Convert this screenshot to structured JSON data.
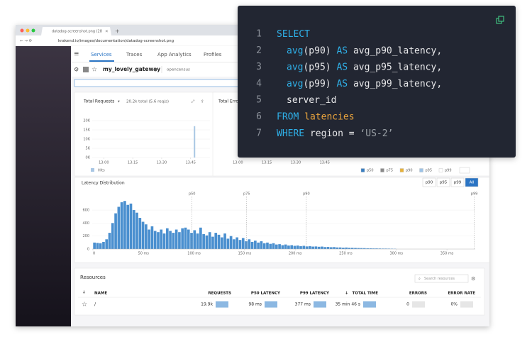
{
  "browser": {
    "tab_title": "datadog-screenshot.png (28",
    "url": "krakend.io/images/documentation/datadog-screenshot.png"
  },
  "nav": [
    "Services",
    "Traces",
    "App Analytics",
    "Profiles"
  ],
  "service": {
    "name": "my_lovely_gateway",
    "tag": "opencensus"
  },
  "requests_chart": {
    "type": "bar",
    "title": "Total Requests",
    "summary": "20.2k total (5.6 req/s)",
    "x": [
      47
    ],
    "values": [
      17000
    ],
    "color": "#a9c7e4",
    "xlim": [
      -6,
      55
    ],
    "xticks": [
      {
        "value": 0,
        "label": "13:00"
      },
      {
        "value": 15,
        "label": "13:15"
      },
      {
        "value": 30,
        "label": "13:30"
      },
      {
        "value": 45,
        "label": "13:45"
      }
    ],
    "ylim": [
      0,
      20000
    ],
    "yticks": [
      {
        "value": 0,
        "label": "0K"
      },
      {
        "value": 5000,
        "label": "5K"
      },
      {
        "value": 10000,
        "label": "10K"
      },
      {
        "value": 15000,
        "label": "15K"
      },
      {
        "value": 20000,
        "label": "20K"
      }
    ],
    "legend": "Hits"
  },
  "errors_chart": {
    "title": "Total Erro",
    "xlim": [
      -6,
      55
    ],
    "xticks": [
      {
        "value": 0,
        "label": "13:00"
      },
      {
        "value": 15,
        "label": "13:15"
      },
      {
        "value": 30,
        "label": "13:30"
      },
      {
        "value": 45,
        "label": "13:45"
      }
    ],
    "legend": [
      {
        "name": "p50",
        "color": "#3a7fc1"
      },
      {
        "name": "p75",
        "color": "#8a8a8a"
      },
      {
        "name": "p90",
        "color": "#e8b23a"
      },
      {
        "name": "p95",
        "color": "#9dc3e6"
      },
      {
        "name": "p99",
        "color": "#ffffff"
      }
    ]
  },
  "latency_chart": {
    "type": "histogram",
    "title": "Latency Distribution",
    "buttons": [
      "p90",
      "p95",
      "p99",
      "All"
    ],
    "active_button": 3,
    "markers": [
      {
        "label": "p50",
        "value": 98
      },
      {
        "label": "p75",
        "value": 152
      },
      {
        "label": "p90",
        "value": 211
      },
      {
        "label": "p99",
        "value": 377
      }
    ],
    "bins": [
      0,
      3,
      6,
      9,
      12,
      15,
      18,
      21,
      24,
      27,
      30,
      33,
      36,
      39,
      42,
      45,
      48,
      51,
      54,
      57,
      60,
      63,
      66,
      69,
      72,
      75,
      78,
      81,
      84,
      87,
      90,
      93,
      96,
      99,
      102,
      105,
      108,
      111,
      114,
      117,
      120,
      123,
      126,
      129,
      132,
      135,
      138,
      141,
      144,
      147,
      150,
      153,
      156,
      159,
      162,
      165,
      168,
      171,
      174,
      177,
      180,
      183,
      186,
      189,
      192,
      195,
      198,
      201,
      204,
      207,
      210,
      213,
      216,
      219,
      222,
      225,
      228,
      231,
      234,
      237,
      240,
      243,
      246,
      249,
      252,
      255,
      258,
      261,
      264,
      267,
      270,
      273,
      276,
      279,
      282,
      285,
      288,
      291,
      294,
      297,
      300
    ],
    "counts": [
      100,
      95,
      90,
      110,
      150,
      250,
      400,
      550,
      650,
      720,
      740,
      680,
      700,
      600,
      560,
      480,
      420,
      380,
      300,
      350,
      280,
      260,
      300,
      240,
      320,
      280,
      250,
      300,
      260,
      320,
      330,
      300,
      250,
      290,
      240,
      330,
      230,
      210,
      260,
      190,
      250,
      220,
      180,
      240,
      160,
      200,
      150,
      180,
      140,
      170,
      120,
      150,
      110,
      130,
      100,
      120,
      90,
      100,
      80,
      90,
      70,
      75,
      60,
      70,
      55,
      60,
      50,
      55,
      45,
      50,
      40,
      45,
      38,
      40,
      35,
      38,
      30,
      32,
      28,
      30,
      25,
      25,
      22,
      24,
      20,
      20,
      18,
      16,
      15,
      14,
      12,
      12,
      10,
      10,
      9,
      8,
      8,
      7,
      6,
      5
    ],
    "color": "#4a8fcf",
    "xlim": [
      0,
      378
    ],
    "xticks": [
      {
        "value": 0,
        "label": "0"
      },
      {
        "value": 50,
        "label": "50 ms"
      },
      {
        "value": 100,
        "label": "100 ms"
      },
      {
        "value": 150,
        "label": "150 ms"
      },
      {
        "value": 200,
        "label": "200 ms"
      },
      {
        "value": 250,
        "label": "250 ms"
      },
      {
        "value": 300,
        "label": "300 ms"
      },
      {
        "value": 350,
        "label": "350 ms"
      }
    ],
    "ylim": [
      0,
      775
    ],
    "yticks": [
      0,
      200,
      400,
      600
    ]
  },
  "resources": {
    "title": "Resources",
    "search_placeholder": "Search resources",
    "columns": [
      "NAME",
      "REQUESTS",
      "P50 LATENCY",
      "P99 LATENCY",
      "TOTAL TIME",
      "ERRORS",
      "ERROR RATE"
    ],
    "rows": [
      [
        "/",
        "19.9k",
        "98 ms",
        "377 ms",
        "35 min 46 s",
        "0",
        "0%"
      ]
    ]
  },
  "code": {
    "lines": [
      {
        "number": 1,
        "indent": false,
        "tokens": [
          {
            "text": "SELECT",
            "kind": "keyword"
          }
        ]
      },
      {
        "number": 2,
        "indent": true,
        "tokens": [
          {
            "text": "avg",
            "kind": "keyword"
          },
          {
            "text": "(p90) ",
            "kind": "plain"
          },
          {
            "text": "AS ",
            "kind": "keyword"
          },
          {
            "text": "avg_p90_latency,",
            "kind": "plain"
          }
        ]
      },
      {
        "number": 3,
        "indent": true,
        "tokens": [
          {
            "text": "avg",
            "kind": "keyword"
          },
          {
            "text": "(p95) ",
            "kind": "plain"
          },
          {
            "text": "AS ",
            "kind": "keyword"
          },
          {
            "text": "avg_p95_latency,",
            "kind": "plain"
          }
        ]
      },
      {
        "number": 4,
        "indent": true,
        "tokens": [
          {
            "text": "avg",
            "kind": "keyword"
          },
          {
            "text": "(p99) ",
            "kind": "plain"
          },
          {
            "text": "AS ",
            "kind": "keyword"
          },
          {
            "text": "avg_p99_latency,",
            "kind": "plain"
          }
        ]
      },
      {
        "number": 5,
        "indent": true,
        "tokens": [
          {
            "text": "server_id",
            "kind": "plain"
          }
        ]
      },
      {
        "number": 6,
        "indent": false,
        "tokens": [
          {
            "text": "FROM ",
            "kind": "keyword"
          },
          {
            "text": "latencies",
            "kind": "table"
          }
        ]
      },
      {
        "number": 7,
        "indent": false,
        "tokens": [
          {
            "text": "WHERE ",
            "kind": "keyword"
          },
          {
            "text": "region = ",
            "kind": "plain"
          },
          {
            "text": "‘US-2’",
            "kind": "string"
          }
        ]
      }
    ]
  }
}
